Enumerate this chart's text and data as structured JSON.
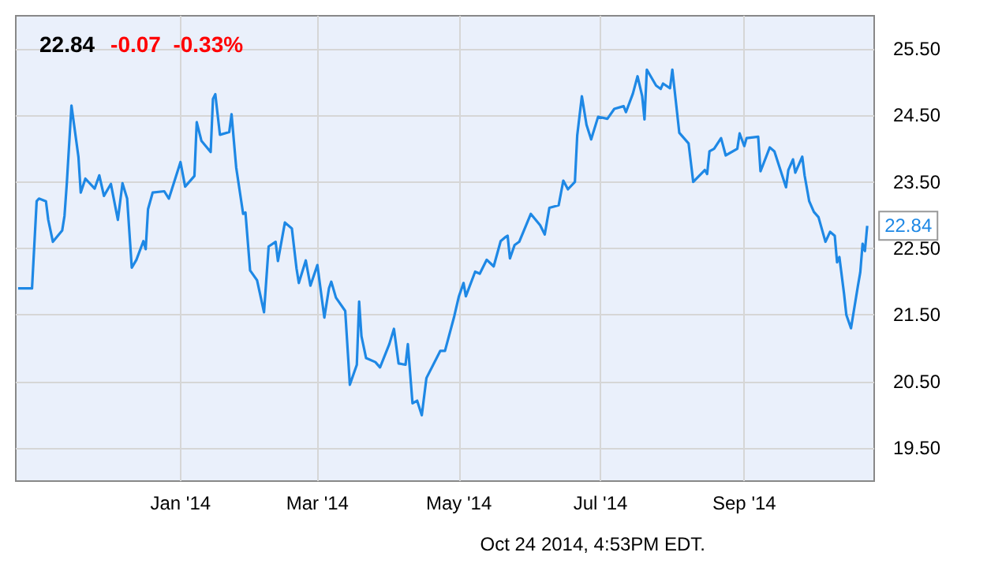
{
  "chart_data": {
    "type": "line",
    "title": "22.84",
    "subtitle": "-0.07  -0.33%",
    "x": [
      "2013-10-23",
      "2013-10-29",
      "2013-10-31",
      "2013-11-01",
      "2013-11-04",
      "2013-11-05",
      "2013-11-07",
      "2013-11-11",
      "2013-11-12",
      "2013-11-13",
      "2013-11-15",
      "2013-11-18",
      "2013-11-19",
      "2013-11-21",
      "2013-11-25",
      "2013-11-27",
      "2013-11-29",
      "2013-12-02",
      "2013-12-05",
      "2013-12-07",
      "2013-12-09",
      "2013-12-11",
      "2013-12-13",
      "2013-12-16",
      "2013-12-17",
      "2013-12-18",
      "2013-12-20",
      "2013-12-25",
      "2013-12-27",
      "2014-01-01",
      "2014-01-03",
      "2014-01-07",
      "2014-01-08",
      "2014-01-10",
      "2014-01-14",
      "2014-01-15",
      "2014-01-16",
      "2014-01-18",
      "2014-01-22",
      "2014-01-23",
      "2014-01-25",
      "2014-01-28",
      "2014-01-29",
      "2014-01-31",
      "2014-02-03",
      "2014-02-06",
      "2014-02-08",
      "2014-02-11",
      "2014-02-12",
      "2014-02-15",
      "2014-02-18",
      "2014-02-20",
      "2014-02-21",
      "2014-02-24",
      "2014-02-26",
      "2014-03-01",
      "2014-03-04",
      "2014-03-06",
      "2014-03-07",
      "2014-03-09",
      "2014-03-13",
      "2014-03-15",
      "2014-03-18",
      "2014-03-19",
      "2014-03-20",
      "2014-03-22",
      "2014-03-26",
      "2014-03-28",
      "2014-04-01",
      "2014-04-03",
      "2014-04-05",
      "2014-04-08",
      "2014-04-09",
      "2014-04-11",
      "2014-04-13",
      "2014-04-15",
      "2014-04-17",
      "2014-04-23",
      "2014-04-25",
      "2014-04-29",
      "2014-05-01",
      "2014-05-03",
      "2014-05-04",
      "2014-05-08",
      "2014-05-10",
      "2014-05-13",
      "2014-05-16",
      "2014-05-19",
      "2014-05-21",
      "2014-05-22",
      "2014-05-23",
      "2014-05-25",
      "2014-05-27",
      "2014-06-01",
      "2014-06-05",
      "2014-06-07",
      "2014-06-09",
      "2014-06-13",
      "2014-06-15",
      "2014-06-17",
      "2014-06-20",
      "2014-06-21",
      "2014-06-23",
      "2014-06-25",
      "2014-06-27",
      "2014-06-30",
      "2014-07-04",
      "2014-07-07",
      "2014-07-11",
      "2014-07-12",
      "2014-07-15",
      "2014-07-17",
      "2014-07-19",
      "2014-07-20",
      "2014-07-21",
      "2014-07-25",
      "2014-07-27",
      "2014-07-28",
      "2014-07-31",
      "2014-08-01",
      "2014-08-04",
      "2014-08-08",
      "2014-08-10",
      "2014-08-15",
      "2014-08-16",
      "2014-08-17",
      "2014-08-19",
      "2014-08-22",
      "2014-08-24",
      "2014-08-29",
      "2014-08-30",
      "2014-09-01",
      "2014-09-02",
      "2014-09-07",
      "2014-09-08",
      "2014-09-12",
      "2014-09-14",
      "2014-09-19",
      "2014-09-20",
      "2014-09-22",
      "2014-09-23",
      "2014-09-26",
      "2014-09-27",
      "2014-09-29",
      "2014-10-01",
      "2014-10-03",
      "2014-10-06",
      "2014-10-08",
      "2014-10-10",
      "2014-10-11",
      "2014-10-12",
      "2014-10-14",
      "2014-10-15",
      "2014-10-16",
      "2014-10-17",
      "2014-10-20",
      "2014-10-21",
      "2014-10-22",
      "2014-10-23",
      "2014-10-24"
    ],
    "series": [
      {
        "color": "#1e88e5",
        "values": [
          21.9,
          21.9,
          23.21,
          23.25,
          23.21,
          22.93,
          22.6,
          22.77,
          22.99,
          23.48,
          24.65,
          23.88,
          23.34,
          23.55,
          23.4,
          23.6,
          23.29,
          23.47,
          22.93,
          23.48,
          23.25,
          22.21,
          22.33,
          22.61,
          22.49,
          23.09,
          23.34,
          23.36,
          23.25,
          23.8,
          23.43,
          23.59,
          24.4,
          24.12,
          23.95,
          24.75,
          24.82,
          24.21,
          24.25,
          24.52,
          23.72,
          23.02,
          23.04,
          22.17,
          22.02,
          21.54,
          22.53,
          22.6,
          22.31,
          22.89,
          22.8,
          22.2,
          21.98,
          22.32,
          21.94,
          22.25,
          21.46,
          21.9,
          22.0,
          21.76,
          21.56,
          20.45,
          20.75,
          21.7,
          21.18,
          20.85,
          20.79,
          20.71,
          21.06,
          21.29,
          20.77,
          20.75,
          21.06,
          20.17,
          20.21,
          19.99,
          20.55,
          20.96,
          20.96,
          21.48,
          21.78,
          21.98,
          21.78,
          22.15,
          22.12,
          22.33,
          22.23,
          22.61,
          22.67,
          22.69,
          22.35,
          22.55,
          22.6,
          23.02,
          22.85,
          22.71,
          23.11,
          23.15,
          23.52,
          23.39,
          23.5,
          24.2,
          24.79,
          24.36,
          24.14,
          24.48,
          24.45,
          24.6,
          24.64,
          24.55,
          24.83,
          25.09,
          24.79,
          24.44,
          25.19,
          24.95,
          24.9,
          24.98,
          24.91,
          25.19,
          24.24,
          24.08,
          23.5,
          23.68,
          23.62,
          23.96,
          24.0,
          24.16,
          23.9,
          24.0,
          24.23,
          24.04,
          24.16,
          24.18,
          23.66,
          24.02,
          23.96,
          23.42,
          23.68,
          23.84,
          23.64,
          23.88,
          23.6,
          23.21,
          23.05,
          22.97,
          22.6,
          22.75,
          22.69,
          22.29,
          22.37,
          21.82,
          21.5,
          21.4,
          21.3,
          21.94,
          22.14,
          22.57,
          22.46,
          22.84
        ]
      }
    ],
    "xlim": [
      "2013-10-22",
      "2014-10-27"
    ],
    "xticks": [
      {
        "value": "2014-01-01",
        "label": "Jan '14"
      },
      {
        "value": "2014-03-01",
        "label": "Mar '14"
      },
      {
        "value": "2014-05-01",
        "label": "May '14"
      },
      {
        "value": "2014-07-01",
        "label": "Jul '14"
      },
      {
        "value": "2014-09-01",
        "label": "Sep '14"
      }
    ],
    "ylim": [
      19.0,
      26.0
    ],
    "yticks": [
      {
        "value": 19.5,
        "label": "19.50"
      },
      {
        "value": 20.5,
        "label": "20.50"
      },
      {
        "value": 21.5,
        "label": "21.50"
      },
      {
        "value": 22.5,
        "label": "22.50"
      },
      {
        "value": 23.5,
        "label": "23.50"
      },
      {
        "value": 24.5,
        "label": "24.50"
      },
      {
        "value": 25.5,
        "label": "25.50"
      }
    ],
    "grid": true,
    "marker": "none",
    "line_style": "solid",
    "annotations": [
      {
        "text": "22.84",
        "x": "2014-10-24",
        "y": 22.84
      },
      "Oct 24 2014, 4:53PM EDT."
    ]
  }
}
